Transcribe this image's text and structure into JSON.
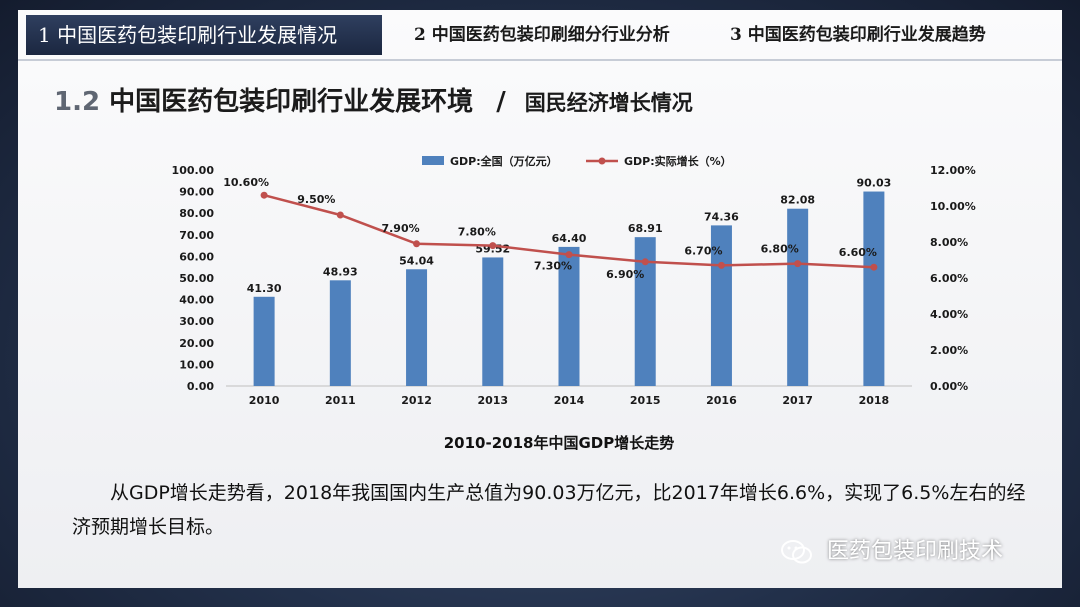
{
  "nav": {
    "active": "1 中国医药包装印刷行业发展情况",
    "tab2": "2 中国医药包装印刷细分行业分析",
    "tab3": "3 中国医药包装印刷行业发展趋势"
  },
  "section": {
    "number": "1.2",
    "title": "中国医药包装印刷行业发展环境",
    "slash": "/",
    "subtitle": "国民经济增长情况"
  },
  "chart_data": {
    "type": "bar",
    "title": "2010-2018年中国GDP增长走势",
    "categories": [
      "2010",
      "2011",
      "2012",
      "2013",
      "2014",
      "2015",
      "2016",
      "2017",
      "2018"
    ],
    "y_left_ticks": [
      "0.00",
      "10.00",
      "20.00",
      "30.00",
      "40.00",
      "50.00",
      "60.00",
      "70.00",
      "80.00",
      "90.00",
      "100.00"
    ],
    "y_right_ticks": [
      "0.00%",
      "2.00%",
      "4.00%",
      "6.00%",
      "8.00%",
      "10.00%",
      "12.00%"
    ],
    "ylim_left": [
      0,
      100
    ],
    "ylim_right": [
      0,
      12
    ],
    "legend_position": "top",
    "series": [
      {
        "name": "GDP:全国（万亿元）",
        "type": "bar",
        "axis": "left",
        "color": "#4f81bd",
        "values": [
          41.3,
          48.93,
          54.04,
          59.52,
          64.4,
          68.91,
          74.36,
          82.08,
          90.03
        ],
        "labels": [
          "41.30",
          "48.93",
          "54.04",
          "59.52",
          "64.40",
          "68.91",
          "74.36",
          "82.08",
          "90.03"
        ]
      },
      {
        "name": "GDP:实际增长（%）",
        "type": "line",
        "axis": "right",
        "color": "#c0504d",
        "values": [
          10.6,
          9.5,
          7.9,
          7.8,
          7.3,
          6.9,
          6.7,
          6.8,
          6.6
        ],
        "labels": [
          "10.60%",
          "9.50%",
          "7.90%",
          "7.80%",
          "7.30%",
          "6.90%",
          "6.70%",
          "6.80%",
          "6.60%"
        ]
      }
    ]
  },
  "body": {
    "paragraph": "从GDP增长走势看，2018年我国国内生产总值为90.03万亿元，比2017年增长6.6%，实现了6.5%左右的经济预期增长目标。"
  },
  "footer": {
    "brand": "医药包装印刷技术",
    "icon": "wechat-icon"
  }
}
